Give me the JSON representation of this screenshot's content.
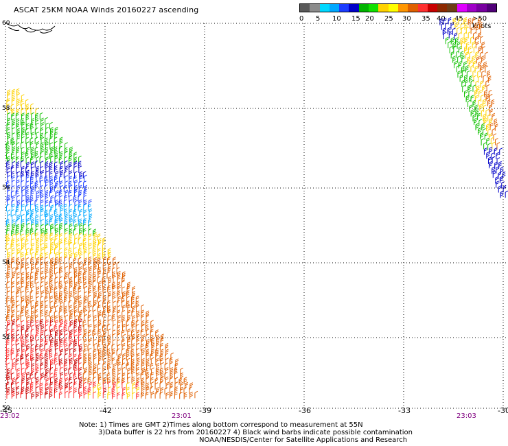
{
  "title": "ASCAT 25KM NOAA Winds 20160227 ascending",
  "scale": {
    "colors": [
      "#5a5a5a",
      "#8c8c8c",
      "#00d8ff",
      "#00a8ff",
      "#1b3cff",
      "#0000c8",
      "#00b400",
      "#10e000",
      "#ffd200",
      "#ffff00",
      "#ff9600",
      "#e06000",
      "#ff3030",
      "#c80000",
      "#8c2800",
      "#6e3c14",
      "#e000ff",
      "#a000c8",
      "#7800a0",
      "#500078"
    ],
    "labels": [
      "0",
      "5",
      "10",
      "15",
      "20",
      "25",
      "30",
      "35",
      "40",
      "45",
      ">50 knots"
    ]
  },
  "axes": {
    "lat_labels": [
      "60",
      "58",
      "56",
      "54",
      "52",
      "50"
    ],
    "lon_labels": [
      "-45",
      "-42",
      "-39",
      "-36",
      "-33",
      "-30"
    ],
    "time_labels": [
      "23:02",
      "23:01",
      "23:03"
    ]
  },
  "footer": {
    "line1": "Note: 1) Times are GMT 2)Times along bottom correspond to measurement at 55N",
    "line2": "3)Data buffer is 22 hrs from 20160227 4) Black wind barbs indicate possible contamination",
    "line3": "NOAA/NESDIS/Center for Satellite Applications and Research"
  },
  "colors": {
    "grid": "#000000",
    "time_label": "#800080"
  }
}
